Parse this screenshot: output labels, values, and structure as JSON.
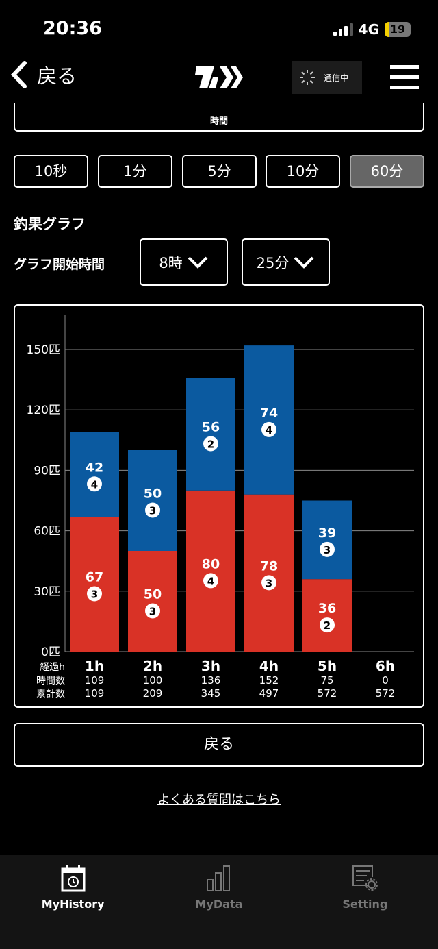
{
  "status_bar": {
    "time": "20:36",
    "network": "4G",
    "battery": "19"
  },
  "header": {
    "back_label": "戻る",
    "logo_text": "DAIWA",
    "comm_status": "通信中"
  },
  "tab_box": {
    "label": "時間"
  },
  "intervals": [
    {
      "label": "10秒",
      "active": false
    },
    {
      "label": "1分",
      "active": false
    },
    {
      "label": "5分",
      "active": false
    },
    {
      "label": "10分",
      "active": false
    },
    {
      "label": "60分",
      "active": true
    }
  ],
  "graph": {
    "title": "釣果グラフ",
    "start_label": "グラフ開始時間",
    "hour_select": "8時",
    "minute_select": "25分"
  },
  "chart_data": {
    "type": "bar",
    "stacked": true,
    "unit": "匹",
    "ylim": [
      0,
      150
    ],
    "yticks": [
      "0匹",
      "30匹",
      "60匹",
      "90匹",
      "120匹",
      "150匹"
    ],
    "ytick_values": [
      0,
      30,
      60,
      90,
      120,
      150
    ],
    "grid": true,
    "colors": {
      "red": "#d93226",
      "blue": "#0b5aa0"
    },
    "row_labels": {
      "x": "経過h",
      "hourly": "時間数",
      "cumulative": "累計数"
    },
    "categories": [
      "1h",
      "2h",
      "3h",
      "4h",
      "5h",
      "6h"
    ],
    "series": [
      {
        "color": "red",
        "values": [
          67,
          50,
          80,
          78,
          36,
          0
        ],
        "counts": [
          3,
          3,
          4,
          3,
          2,
          0
        ]
      },
      {
        "color": "blue",
        "values": [
          42,
          50,
          56,
          74,
          39,
          0
        ],
        "counts": [
          4,
          3,
          2,
          4,
          3,
          0
        ]
      }
    ],
    "hourly": [
      "109",
      "100",
      "136",
      "152",
      "75",
      "0"
    ],
    "cumulative": [
      "109",
      "209",
      "345",
      "497",
      "572",
      "572"
    ]
  },
  "footer": {
    "back_button": "戻る",
    "faq_link": "よくある質問はこちら"
  },
  "tabbar": [
    {
      "label": "MyHistory",
      "icon": "calendar-history-icon",
      "active": true
    },
    {
      "label": "MyData",
      "icon": "bar-chart-icon",
      "active": false
    },
    {
      "label": "Setting",
      "icon": "settings-icon",
      "active": false
    }
  ]
}
